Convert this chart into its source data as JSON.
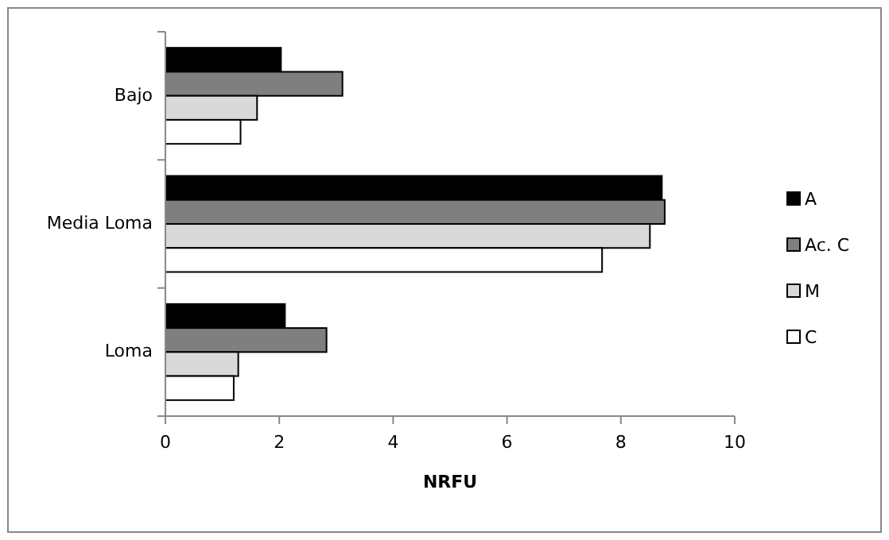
{
  "chart_data": {
    "type": "bar",
    "orientation": "horizontal",
    "categories": [
      "Bajo",
      "Media Loma",
      "Loma"
    ],
    "xlabel": "NRFU",
    "xlim": [
      0,
      10
    ],
    "xticks": [
      0,
      2,
      4,
      6,
      8,
      10
    ],
    "grid": false,
    "legend": "right",
    "series": [
      {
        "name": "A",
        "color": "#000000",
        "values": [
          2.03,
          8.72,
          2.1
        ]
      },
      {
        "name": "Ac. C",
        "color": "#7f7f7f",
        "values": [
          3.11,
          8.77,
          2.83
        ]
      },
      {
        "name": "M",
        "color": "#d9d9d9",
        "values": [
          1.61,
          8.51,
          1.28
        ]
      },
      {
        "name": "C",
        "color": "#ffffff",
        "values": [
          1.32,
          7.67,
          1.2
        ]
      }
    ]
  }
}
